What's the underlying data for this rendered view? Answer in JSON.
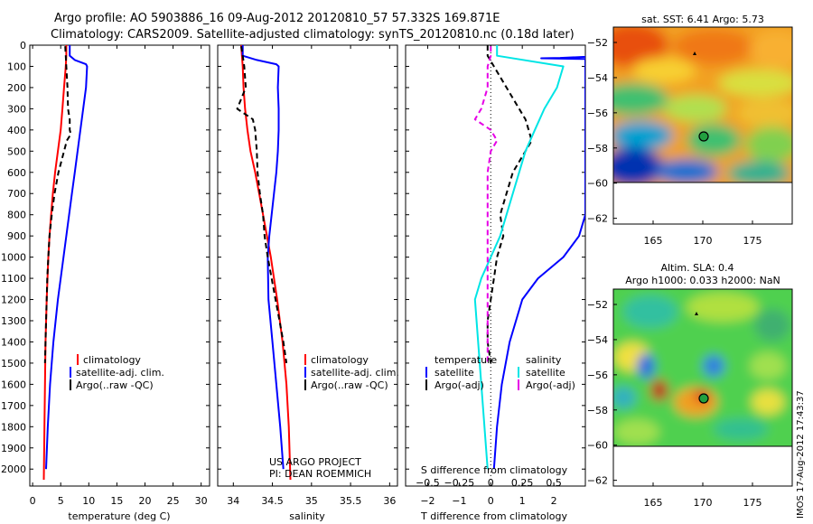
{
  "title": {
    "line1": "Argo profile: AO 5903886_16 09-Aug-2012 20120810_57 57.332S 169.871E",
    "line2": "Climatology: CARS2009. Satellite-adjusted climatology: synTS_20120810.nc (0.18d later)"
  },
  "credits": {
    "project": "US ARGO PROJECT",
    "pi": "PI: DEAN ROEMMICH",
    "imos": "IMOS 17-Aug-2012 17:43:37"
  },
  "colors": {
    "climatology": "#ff0000",
    "satellite": "#0000ff",
    "argo": "#000000",
    "sal_satellite": "#00e5e5",
    "sal_argo": "#e600e6"
  },
  "chart_data": [
    {
      "type": "line",
      "id": "temperature",
      "xlabel": "temperature (deg C)",
      "ylabel": "",
      "xlim": [
        -0.5,
        31.5
      ],
      "ylim": [
        2080,
        0
      ],
      "xticks": [
        0,
        5,
        10,
        15,
        20,
        25,
        30
      ],
      "xtick_labels": [
        "0",
        "5",
        "10",
        "15",
        "20",
        "25",
        "30"
      ],
      "yticks": [
        0,
        100,
        200,
        300,
        400,
        500,
        600,
        700,
        800,
        900,
        1000,
        1100,
        1200,
        1300,
        1400,
        1500,
        1600,
        1700,
        1800,
        1900,
        2000
      ],
      "ytick_labels": [
        "0",
        "100",
        "200",
        "300",
        "400",
        "500",
        "600",
        "700",
        "800",
        "900",
        "1000",
        "1100",
        "1200",
        "1300",
        "1400",
        "1500",
        "1600",
        "1700",
        "1800",
        "1900",
        "2000"
      ],
      "legend": [
        "climatology",
        "satellite-adj. clim.",
        "Argo(..raw -QC)"
      ],
      "series": [
        {
          "name": "climatology",
          "color": "#ff0000",
          "dash": "",
          "y": [
            0,
            50,
            100,
            200,
            300,
            400,
            500,
            600,
            700,
            800,
            900,
            1000,
            1200,
            1400,
            1600,
            1800,
            2050
          ],
          "x": [
            6.0,
            6.0,
            5.9,
            5.6,
            5.3,
            5.0,
            4.5,
            4.0,
            3.6,
            3.3,
            3.0,
            2.8,
            2.5,
            2.3,
            2.2,
            2.1,
            2.0
          ]
        },
        {
          "name": "satellite-adj. clim.",
          "color": "#0000ff",
          "dash": "",
          "y": [
            0,
            50,
            70,
            90,
            100,
            200,
            300,
            400,
            500,
            600,
            700,
            800,
            900,
            1000,
            1200,
            1400,
            1600,
            1800,
            2000
          ],
          "x": [
            6.6,
            6.6,
            7.5,
            9.5,
            9.7,
            9.5,
            9.0,
            8.5,
            8.0,
            7.5,
            7.0,
            6.5,
            6.0,
            5.5,
            4.5,
            3.7,
            3.1,
            2.7,
            2.4
          ]
        },
        {
          "name": "Argo(..raw -QC)",
          "color": "#000000",
          "dash": "6,4",
          "y": [
            5,
            50,
            100,
            200,
            300,
            350,
            400,
            420,
            450,
            500,
            600,
            700,
            800,
            900,
            1000,
            1100,
            1200,
            1300,
            1400,
            1500
          ],
          "x": [
            5.8,
            5.9,
            6.0,
            6.2,
            6.3,
            6.6,
            6.6,
            6.8,
            6.1,
            5.6,
            4.6,
            3.9,
            3.4,
            3.0,
            2.8,
            2.6,
            2.5,
            2.4,
            2.3,
            2.2
          ]
        }
      ]
    },
    {
      "type": "line",
      "id": "salinity",
      "xlabel": "salinity",
      "ylabel": "",
      "xlim": [
        33.8,
        36.1
      ],
      "ylim": [
        2080,
        0
      ],
      "xticks": [
        34,
        34.5,
        35,
        35.5,
        36
      ],
      "xtick_labels": [
        "34",
        "34.5",
        "35",
        "35.5",
        "36"
      ],
      "legend": [
        "climatology",
        "satellite-adj. clim.",
        "Argo(..raw -QC)"
      ],
      "series": [
        {
          "name": "climatology",
          "color": "#ff0000",
          "dash": "",
          "y": [
            0,
            50,
            100,
            200,
            300,
            400,
            500,
            600,
            700,
            800,
            900,
            1000,
            1200,
            1400,
            1600,
            1800,
            2050
          ],
          "x": [
            34.1,
            34.11,
            34.12,
            34.13,
            34.15,
            34.18,
            34.22,
            34.28,
            34.33,
            34.38,
            34.43,
            34.48,
            34.56,
            34.63,
            34.68,
            34.71,
            34.73
          ]
        },
        {
          "name": "satellite-adj. clim.",
          "color": "#0000ff",
          "dash": "",
          "y": [
            0,
            50,
            70,
            90,
            100,
            200,
            300,
            400,
            500,
            600,
            700,
            800,
            900,
            1000,
            1200,
            1400,
            1600,
            1800,
            2000
          ],
          "x": [
            34.12,
            34.12,
            34.3,
            34.55,
            34.58,
            34.57,
            34.58,
            34.58,
            34.57,
            34.55,
            34.52,
            34.49,
            34.46,
            34.44,
            34.45,
            34.5,
            34.55,
            34.6,
            34.64
          ]
        },
        {
          "name": "Argo(..raw -QC)",
          "color": "#000000",
          "dash": "6,4",
          "y": [
            5,
            50,
            100,
            200,
            300,
            350,
            400,
            450,
            500,
            600,
            700,
            800,
            900,
            1000,
            1100,
            1200,
            1300,
            1400,
            1500
          ],
          "x": [
            34.1,
            34.12,
            34.14,
            34.16,
            34.05,
            34.25,
            34.28,
            34.29,
            34.3,
            34.31,
            34.34,
            34.38,
            34.4,
            34.44,
            34.49,
            34.54,
            34.59,
            34.64,
            34.68
          ]
        }
      ]
    },
    {
      "type": "line",
      "id": "difference",
      "xlabel": "T difference from climatology",
      "xlabel_top": "S difference from climatology",
      "ylabel": "",
      "xlim": [
        -2.7,
        3.0
      ],
      "ylim": [
        2080,
        0
      ],
      "xticks": [
        -2,
        -1,
        0,
        1,
        2
      ],
      "xtick_labels": [
        "−2",
        "−1",
        "0",
        "1",
        "2"
      ],
      "s_tick_labels": [
        "−0.5",
        "−0.25",
        "0",
        "0.25",
        "0.5"
      ],
      "legend_temperature_title": "temperature",
      "legend_salinity_title": "salinity",
      "legend": [
        "satellite",
        "Argo(-adj)",
        "satellite",
        "Argo(-adj)"
      ],
      "series": [
        {
          "name": "satellite",
          "color": "#0000ff",
          "dash": "",
          "y": [
            0,
            40,
            55,
            60,
            62,
            65,
            600,
            800,
            900,
            1000,
            1100,
            1200,
            1400,
            1600,
            1800,
            2000
          ],
          "x": [
            3.1,
            3.1,
            3.0,
            2.2,
            1.6,
            3.0,
            3.0,
            3.0,
            2.8,
            2.3,
            1.5,
            1.0,
            0.6,
            0.35,
            0.2,
            0.1
          ]
        },
        {
          "name": "Argo(-adj)",
          "color": "#000000",
          "dash": "6,4",
          "y": [
            0,
            50,
            100,
            200,
            300,
            350,
            400,
            450,
            500,
            600,
            700,
            800,
            900,
            1000,
            1100,
            1200,
            1300,
            1400,
            1500
          ],
          "x": [
            -0.1,
            -0.1,
            0.1,
            0.5,
            0.9,
            1.1,
            1.2,
            1.3,
            1.1,
            0.7,
            0.5,
            0.3,
            0.4,
            0.2,
            0.1,
            0.0,
            -0.1,
            -0.1,
            0.0
          ]
        },
        {
          "name": "satellite",
          "color": "#00e5e5",
          "dash": "",
          "y": [
            0,
            50,
            100,
            200,
            300,
            400,
            500,
            600,
            700,
            800,
            900,
            1000,
            1100,
            1200,
            1400,
            1600,
            1800,
            2000
          ],
          "x": [
            0.2,
            0.2,
            2.3,
            2.1,
            1.7,
            1.4,
            1.1,
            0.9,
            0.7,
            0.5,
            0.3,
            0.0,
            -0.3,
            -0.5,
            -0.4,
            -0.3,
            -0.2,
            -0.1
          ]
        },
        {
          "name": "Argo(-adj)",
          "color": "#e600e6",
          "dash": "6,4",
          "y": [
            5,
            50,
            100,
            200,
            300,
            350,
            400,
            450,
            500,
            600,
            700,
            800,
            900,
            1000,
            1200,
            1400,
            1500
          ],
          "x": [
            0.0,
            0.0,
            -0.1,
            -0.1,
            -0.3,
            -0.5,
            0.0,
            0.2,
            0.0,
            -0.1,
            -0.1,
            -0.1,
            -0.1,
            -0.1,
            -0.1,
            -0.1,
            -0.1
          ]
        }
      ]
    },
    {
      "type": "heatmap",
      "id": "sst_map",
      "title": "sat. SST: 6.41  Argo: 5.73",
      "xlim": [
        161,
        179
      ],
      "ylim": [
        -60,
        -51
      ],
      "xticks": [
        165,
        170,
        175
      ],
      "xtick_labels": [
        "165",
        "170",
        "175"
      ],
      "yticks": [
        -52,
        -54,
        -56,
        -58,
        -60,
        -62
      ],
      "ytick_labels": [
        "−52",
        "−54",
        "−56",
        "−58",
        "−60",
        "−62"
      ],
      "argo_position": [
        169.871,
        -57.332
      ],
      "previous_position": [
        169.5,
        -52.6
      ]
    },
    {
      "type": "heatmap",
      "id": "sla_map",
      "title": "Altim. SLA: 0.4",
      "subtitle": "Argo h1000: 0.033 h2000: NaN",
      "xlim": [
        161,
        179
      ],
      "ylim": [
        -60,
        -51
      ],
      "xticks": [
        165,
        170,
        175
      ],
      "xtick_labels": [
        "165",
        "170",
        "175"
      ],
      "yticks": [
        -52,
        -54,
        -56,
        -58,
        -60,
        -62
      ],
      "ytick_labels": [
        "−52",
        "−54",
        "−56",
        "−58",
        "−60",
        "−62"
      ],
      "argo_position": [
        169.871,
        -57.332
      ],
      "previous_position": [
        169.5,
        -52.6
      ]
    }
  ]
}
